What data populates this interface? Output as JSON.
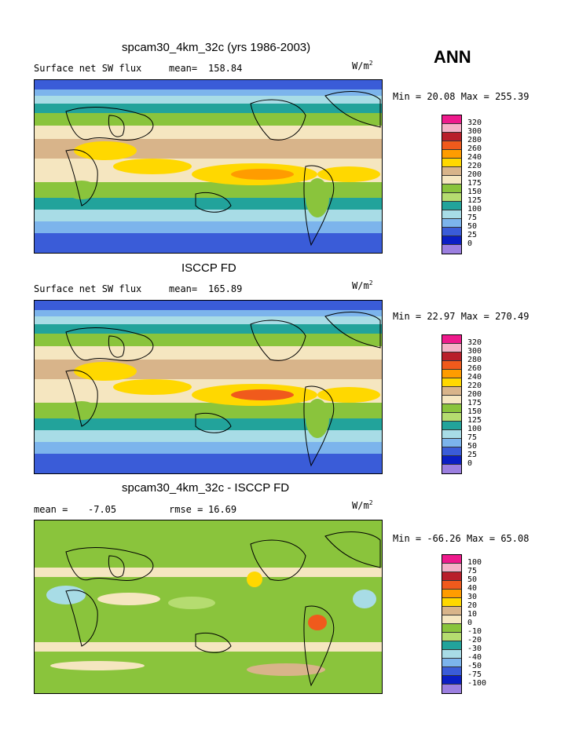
{
  "season": "ANN",
  "panels": [
    {
      "title": "spcam30_4km_32c (yrs 1986-2003)",
      "left_label": "Surface net SW flux",
      "stat_label": "mean=",
      "stat_value": "158.84",
      "units": "W/m",
      "units_exp": "2",
      "min_label": "Min =",
      "min_value": "20.08",
      "max_label": "Max =",
      "max_value": "255.39",
      "levels": [
        "320",
        "300",
        "280",
        "260",
        "240",
        "220",
        "200",
        "175",
        "150",
        "125",
        "100",
        "75",
        "50",
        "25",
        "0"
      ],
      "colors": [
        "#ee1a8c",
        "#f5b1c7",
        "#b81e2a",
        "#f05a1c",
        "#ff9c00",
        "#ffd800",
        "#d8b48a",
        "#f5e6c0",
        "#8ac43c",
        "#b5dc70",
        "#22a39b",
        "#a8dce6",
        "#7cb4ec",
        "#3a5cd8",
        "#0a1ec4",
        "#9b7fe0"
      ],
      "field": "control"
    },
    {
      "title": "ISCCP FD",
      "left_label": "Surface net SW flux",
      "stat_label": "mean=",
      "stat_value": "165.89",
      "units": "W/m",
      "units_exp": "2",
      "min_label": "Min =",
      "min_value": "22.97",
      "max_label": "Max =",
      "max_value": "270.49",
      "levels": [
        "320",
        "300",
        "280",
        "260",
        "240",
        "220",
        "200",
        "175",
        "150",
        "125",
        "100",
        "75",
        "50",
        "25",
        "0"
      ],
      "colors": [
        "#ee1a8c",
        "#f5b1c7",
        "#b81e2a",
        "#f05a1c",
        "#ff9c00",
        "#ffd800",
        "#d8b48a",
        "#f5e6c0",
        "#8ac43c",
        "#b5dc70",
        "#22a39b",
        "#a8dce6",
        "#7cb4ec",
        "#3a5cd8",
        "#0a1ec4",
        "#9b7fe0"
      ],
      "field": "obs"
    },
    {
      "title": "spcam30_4km_32c - ISCCP FD",
      "left_label": "mean =",
      "left_value": "-7.05",
      "stat_label": "rmse =",
      "stat_value": "16.69",
      "units": "W/m",
      "units_exp": "2",
      "min_label": "Min =",
      "min_value": "-66.26",
      "max_label": "Max =",
      "max_value": "65.08",
      "levels": [
        "100",
        "75",
        "50",
        "40",
        "30",
        "20",
        "10",
        "0",
        "-10",
        "-20",
        "-30",
        "-40",
        "-50",
        "-75",
        "-100"
      ],
      "colors": [
        "#ee1a8c",
        "#f5b1c7",
        "#b81e2a",
        "#f05a1c",
        "#ff9c00",
        "#ffd800",
        "#d8b48a",
        "#f5e6c0",
        "#8ac43c",
        "#b5dc70",
        "#22a39b",
        "#a8dce6",
        "#7cb4ec",
        "#3a5cd8",
        "#0a1ec4",
        "#9b7fe0"
      ],
      "field": "diff"
    }
  ],
  "chart_data": [
    {
      "type": "heatmap",
      "title": "spcam30_4km_32c (yrs 1986-2003)",
      "subtitle": "Surface net SW flux",
      "units": "W/m2",
      "mean": 158.84,
      "min": 20.08,
      "max": 255.39,
      "contour_levels": [
        0,
        25,
        50,
        75,
        100,
        125,
        150,
        175,
        200,
        220,
        240,
        260,
        280,
        300,
        320
      ]
    },
    {
      "type": "heatmap",
      "title": "ISCCP FD",
      "subtitle": "Surface net SW flux",
      "units": "W/m2",
      "mean": 165.89,
      "min": 22.97,
      "max": 270.49,
      "contour_levels": [
        0,
        25,
        50,
        75,
        100,
        125,
        150,
        175,
        200,
        220,
        240,
        260,
        280,
        300,
        320
      ]
    },
    {
      "type": "heatmap",
      "title": "spcam30_4km_32c - ISCCP FD",
      "units": "W/m2",
      "mean": -7.05,
      "rmse": 16.69,
      "min": -66.26,
      "max": 65.08,
      "contour_levels": [
        -100,
        -75,
        -50,
        -40,
        -30,
        -20,
        -10,
        0,
        10,
        20,
        30,
        40,
        50,
        75,
        100
      ]
    }
  ]
}
